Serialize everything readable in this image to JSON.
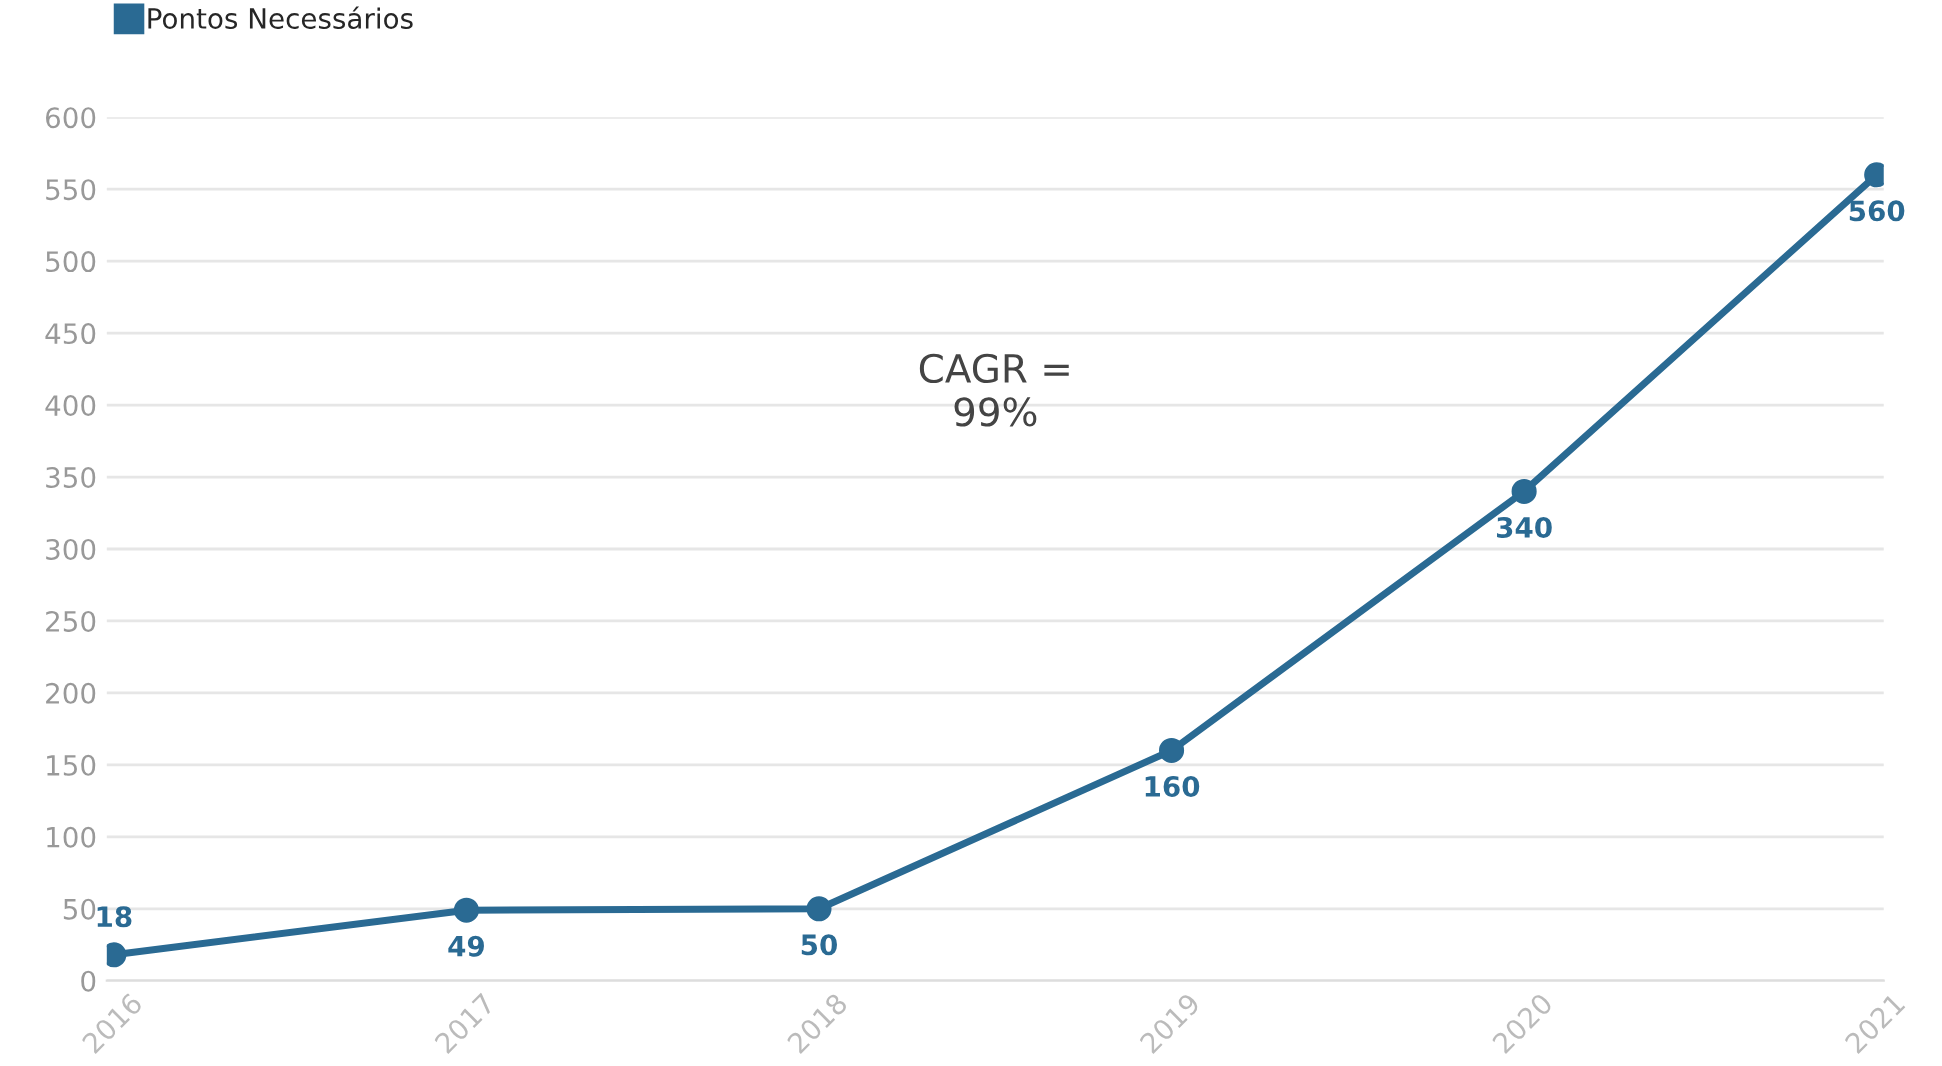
{
  "chart_data": {
    "type": "line",
    "categories": [
      "2016",
      "2017",
      "2018",
      "2019",
      "2020",
      "2021"
    ],
    "series": [
      {
        "name": "Pontos Necessários",
        "color": "#2a6a93",
        "values": [
          18,
          49,
          50,
          160,
          340,
          560
        ]
      }
    ],
    "ylim": [
      0,
      600
    ],
    "yticks": [
      0,
      50,
      100,
      150,
      200,
      250,
      300,
      350,
      400,
      450,
      500,
      550,
      600
    ],
    "grid": "y",
    "legend": "top left",
    "marker": "circle",
    "line_style": "solid",
    "data_labels": true,
    "annotations": [
      "CAGR =\n99%"
    ]
  }
}
